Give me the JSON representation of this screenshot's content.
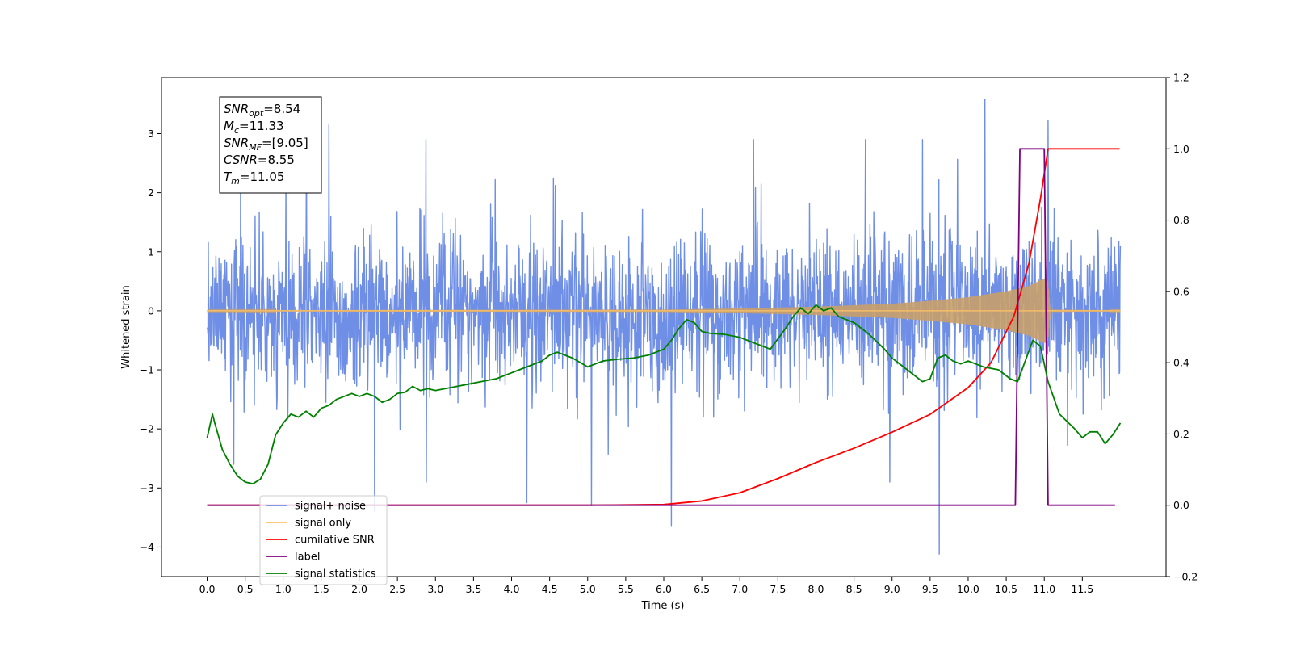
{
  "chart_data": {
    "type": "line",
    "xlabel": "Time (s)",
    "ylabel": "Whitened strain",
    "ylabel_right": "",
    "xlim": [
      -0.6,
      12.6
    ],
    "ylim": [
      -4.5,
      3.95
    ],
    "ylim_right": [
      -0.2,
      1.2
    ],
    "x_ticks": [
      "0.0",
      "0.5",
      "1.0",
      "1.5",
      "2.0",
      "2.5",
      "3.0",
      "3.5",
      "4.0",
      "4.5",
      "5.0",
      "5.5",
      "6.0",
      "6.5",
      "7.0",
      "7.5",
      "8.0",
      "8.5",
      "9.0",
      "9.5",
      "10.0",
      "10.5",
      "11.0",
      "11.5"
    ],
    "y_ticks": [
      "3",
      "2",
      "1",
      "0",
      "−1",
      "−2",
      "−3",
      "−4"
    ],
    "y_ticks_right": [
      "1.2",
      "1.0",
      "0.8",
      "0.6",
      "0.4",
      "0.2",
      "0.0",
      "−0.2"
    ],
    "grid": false,
    "legend_position": "lower-left",
    "annotation": {
      "lines": [
        {
          "var": "SNR",
          "sub": "opt",
          "value": "=8.54"
        },
        {
          "var": "M",
          "sub": "c",
          "value": "=11.33"
        },
        {
          "var": "SNR",
          "sub": "MF",
          "value": "=[9.05]"
        },
        {
          "var": "CSNR",
          "sub": "",
          "value": "=8.55"
        },
        {
          "var": "T",
          "sub": "m",
          "value": "=11.05"
        }
      ]
    },
    "legend": [
      {
        "label": "signal+ noise",
        "color": "#6f8fe6"
      },
      {
        "label": "signal only",
        "color": "#ffc266"
      },
      {
        "label": "cumilative SNR",
        "color": "#ff0000"
      },
      {
        "label": "label",
        "color": "#800080"
      },
      {
        "label": "signal statistics",
        "color": "#008000"
      }
    ],
    "series": [
      {
        "name": "signal+ noise",
        "axis": "left",
        "color": "#6f8fe6",
        "description_range": {
          "x_start": 0.0,
          "x_end": 12.0,
          "approx_amplitude": 1.3,
          "peak_max": 3.58,
          "peak_min": -4.12
        },
        "spikes": [
          [
            1.6,
            3.15
          ],
          [
            10.22,
            3.58
          ],
          [
            11.05,
            3.22
          ],
          [
            9.62,
            -4.12
          ],
          [
            6.1,
            -3.65
          ],
          [
            5.05,
            -3.3
          ],
          [
            4.2,
            -3.25
          ],
          [
            2.2,
            -3.4
          ],
          [
            0.35,
            -2.6
          ]
        ]
      },
      {
        "name": "signal only",
        "axis": "left",
        "color": "#ffc266",
        "envelope": {
          "x": [
            0.0,
            6.0,
            7.0,
            8.0,
            9.0,
            9.5,
            10.0,
            10.5,
            10.8,
            11.0,
            11.05,
            11.08,
            12.0
          ],
          "amp": [
            0.01,
            0.02,
            0.04,
            0.07,
            0.12,
            0.17,
            0.23,
            0.33,
            0.42,
            0.55,
            0.5,
            0.02,
            0.01
          ]
        }
      },
      {
        "name": "cumilative SNR",
        "axis": "right",
        "color": "#ff0000",
        "x": [
          0.0,
          5.0,
          6.0,
          6.5,
          7.0,
          7.5,
          8.0,
          8.5,
          9.0,
          9.5,
          10.0,
          10.3,
          10.6,
          10.8,
          10.95,
          11.05,
          11.1,
          11.5,
          11.99
        ],
        "y": [
          0.0,
          0.0,
          0.002,
          0.012,
          0.035,
          0.075,
          0.12,
          0.16,
          0.205,
          0.255,
          0.33,
          0.4,
          0.53,
          0.68,
          0.86,
          1.0,
          1.0,
          1.0,
          1.0
        ]
      },
      {
        "name": "label",
        "axis": "right",
        "color": "#800080",
        "x": [
          0.0,
          10.62,
          10.68,
          11.0,
          11.05,
          11.93
        ],
        "y": [
          0.0,
          0.0,
          1.0,
          1.0,
          0.0,
          0.0
        ]
      },
      {
        "name": "signal statistics",
        "axis": "left",
        "color": "#008000",
        "x": [
          0.0,
          0.07,
          0.1,
          0.2,
          0.3,
          0.4,
          0.5,
          0.6,
          0.7,
          0.8,
          0.9,
          1.0,
          1.1,
          1.2,
          1.3,
          1.4,
          1.5,
          1.6,
          1.7,
          1.8,
          1.9,
          2.0,
          2.1,
          2.2,
          2.3,
          2.4,
          2.5,
          2.6,
          2.7,
          2.8,
          2.9,
          3.0,
          3.2,
          3.4,
          3.6,
          3.8,
          4.0,
          4.2,
          4.4,
          4.5,
          4.6,
          4.8,
          5.0,
          5.2,
          5.4,
          5.6,
          5.8,
          6.0,
          6.1,
          6.2,
          6.3,
          6.4,
          6.5,
          6.6,
          6.8,
          7.0,
          7.2,
          7.4,
          7.6,
          7.7,
          7.8,
          7.9,
          8.0,
          8.1,
          8.2,
          8.3,
          8.5,
          8.7,
          8.9,
          9.0,
          9.2,
          9.4,
          9.5,
          9.6,
          9.7,
          9.8,
          9.9,
          10.0,
          10.2,
          10.4,
          10.55,
          10.65,
          10.75,
          10.85,
          10.95,
          11.05,
          11.2,
          11.4,
          11.5,
          11.6,
          11.7,
          11.8,
          11.9,
          12.0
        ],
        "y": [
          -2.15,
          -1.75,
          -1.9,
          -2.35,
          -2.6,
          -2.8,
          -2.9,
          -2.93,
          -2.85,
          -2.6,
          -2.1,
          -1.9,
          -1.75,
          -1.8,
          -1.7,
          -1.8,
          -1.65,
          -1.6,
          -1.5,
          -1.45,
          -1.4,
          -1.45,
          -1.4,
          -1.45,
          -1.55,
          -1.5,
          -1.4,
          -1.38,
          -1.28,
          -1.35,
          -1.32,
          -1.35,
          -1.3,
          -1.25,
          -1.2,
          -1.15,
          -1.05,
          -0.95,
          -0.85,
          -0.75,
          -0.7,
          -0.8,
          -0.95,
          -0.85,
          -0.82,
          -0.8,
          -0.75,
          -0.65,
          -0.5,
          -0.3,
          -0.15,
          -0.2,
          -0.35,
          -0.38,
          -0.4,
          -0.45,
          -0.55,
          -0.65,
          -0.3,
          -0.1,
          0.05,
          -0.05,
          0.1,
          0.0,
          0.05,
          -0.1,
          -0.2,
          -0.4,
          -0.65,
          -0.8,
          -1.0,
          -1.2,
          -1.15,
          -0.8,
          -0.75,
          -0.85,
          -0.9,
          -0.85,
          -0.95,
          -1.0,
          -1.15,
          -1.2,
          -0.85,
          -0.5,
          -0.6,
          -1.2,
          -1.75,
          -2.0,
          -2.15,
          -2.05,
          -2.05,
          -2.25,
          -2.1,
          -1.9
        ]
      }
    ]
  }
}
